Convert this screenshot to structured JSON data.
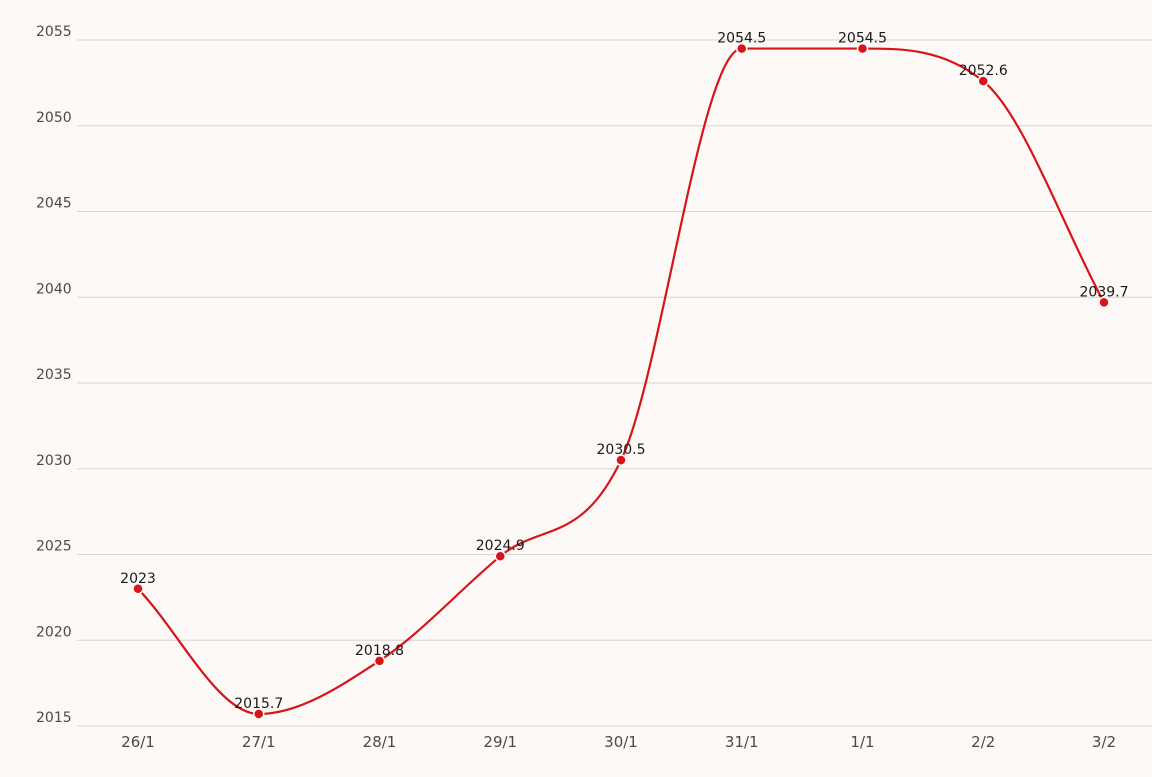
{
  "chart_data": {
    "type": "line",
    "title": "",
    "xlabel": "",
    "ylabel": "",
    "categories": [
      "26/1",
      "27/1",
      "28/1",
      "29/1",
      "30/1",
      "31/1",
      "1/1",
      "2/2",
      "3/2"
    ],
    "series": [
      {
        "values": [
          2023,
          2015.7,
          2018.8,
          2024.9,
          2030.5,
          2054.5,
          2054.5,
          2052.6,
          2039.7
        ],
        "labels": [
          "2023",
          "2015.7",
          "2018.8",
          "2024.9",
          "2030.5",
          "2054.5",
          "2054.5",
          "2052.6",
          "2039.7"
        ],
        "color": "#d7141a"
      }
    ],
    "y_ticks": [
      "2015",
      "2020",
      "2025",
      "2030",
      "2035",
      "2040",
      "2045",
      "2050",
      "2055"
    ],
    "ylim": [
      2015,
      2055
    ],
    "grid": true,
    "legend": "none"
  }
}
